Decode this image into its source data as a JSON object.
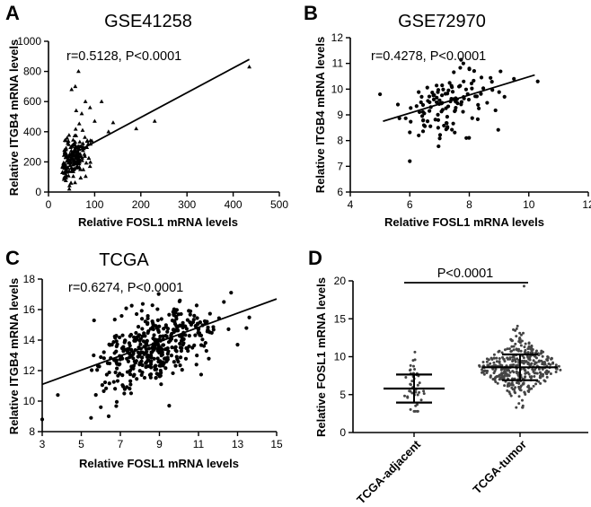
{
  "chart_data": [
    {
      "panel": "A",
      "type": "scatter",
      "title": "GSE41258",
      "stat": "r=0.5128, P<0.0001",
      "xlabel": "Relative FOSL1 mRNA levels",
      "ylabel": "Relative ITGB4 mRNA levels",
      "xlim": [
        0,
        500
      ],
      "ylim": [
        0,
        1000
      ],
      "xticks": [
        "0",
        "100",
        "200",
        "300",
        "400",
        "500"
      ],
      "yticks": [
        "0",
        "200",
        "400",
        "600",
        "800",
        "1000"
      ],
      "marker": "triangle",
      "fit_line": [
        [
          35,
          225
        ],
        [
          435,
          880
        ]
      ],
      "n_points": 180,
      "cluster": {
        "x_mean": 55,
        "x_sd": 18,
        "x_min": 30,
        "y_mean": 220,
        "y_sd": 70
      },
      "outliers": [
        [
          65,
          800
        ],
        [
          50,
          680
        ],
        [
          58,
          700
        ],
        [
          80,
          600
        ],
        [
          115,
          600
        ],
        [
          60,
          540
        ],
        [
          90,
          560
        ],
        [
          72,
          520
        ],
        [
          140,
          460
        ],
        [
          230,
          470
        ],
        [
          190,
          420
        ],
        [
          435,
          830
        ],
        [
          45,
          20
        ],
        [
          100,
          470
        ],
        [
          130,
          400
        ]
      ]
    },
    {
      "panel": "B",
      "type": "scatter",
      "title": "GSE72970",
      "stat": "r=0.4278, P<0.0001",
      "xlabel": "Relative FOSL1 mRNA levels",
      "ylabel": "Relative ITGB4 mRNA levels",
      "xlim": [
        4,
        12
      ],
      "ylim": [
        6,
        12
      ],
      "xticks": [
        "4",
        "6",
        "8",
        "10",
        "12"
      ],
      "yticks": [
        "6",
        "7",
        "8",
        "9",
        "10",
        "11",
        "12"
      ],
      "marker": "circle",
      "fit_line": [
        [
          5.1,
          8.75
        ],
        [
          10.2,
          10.55
        ]
      ],
      "n_points": 120,
      "cluster": {
        "x_mean": 7.2,
        "x_sd": 0.75,
        "x_min": 5,
        "y_mean": 9.4,
        "y_sd": 0.6
      },
      "outliers": [
        [
          6.0,
          7.2
        ],
        [
          7.9,
          8.1
        ],
        [
          5.0,
          9.8
        ],
        [
          10.3,
          10.3
        ],
        [
          9.5,
          10.4
        ],
        [
          7.8,
          11.0
        ],
        [
          8.0,
          10.8
        ],
        [
          6.3,
          8.2
        ],
        [
          5.6,
          9.4
        ]
      ]
    },
    {
      "panel": "C",
      "type": "scatter",
      "title": "TCGA",
      "stat": "r=0.6274, P<0.0001",
      "xlabel": "Relative FOSL1 mRNA levels",
      "ylabel": "Relative ITGB4 mRNA levels",
      "xlim": [
        3,
        15
      ],
      "ylim": [
        8,
        18
      ],
      "xticks": [
        "3",
        "5",
        "7",
        "9",
        "11",
        "13",
        "15"
      ],
      "yticks": [
        "8",
        "10",
        "12",
        "14",
        "16",
        "18"
      ],
      "marker": "circle",
      "fit_line": [
        [
          3,
          11.1
        ],
        [
          15,
          16.7
        ]
      ],
      "n_points": 420,
      "cluster": {
        "x_mean": 8.8,
        "x_sd": 1.5,
        "x_min": 5.3,
        "y_mean": 13.6,
        "y_sd": 1.1
      },
      "outliers": [
        [
          3,
          8.8
        ],
        [
          3.8,
          10.4
        ],
        [
          5.5,
          8.9
        ],
        [
          9.5,
          9.7
        ],
        [
          13.0,
          13.7
        ],
        [
          12.3,
          16.5
        ],
        [
          6.0,
          9.6
        ],
        [
          7.2,
          10.5
        ]
      ]
    },
    {
      "panel": "D",
      "type": "dot-strip",
      "title": "",
      "xlabel": "",
      "ylabel": "Relative FOSL1 mRNA levels",
      "ylim": [
        0,
        20
      ],
      "yticks": [
        "0",
        "5",
        "10",
        "15",
        "20"
      ],
      "categories": [
        "TCGA-adjacent",
        "TCGA-tumor"
      ],
      "groups": [
        {
          "name": "TCGA-adjacent",
          "mean": 5.8,
          "sd": 1.85,
          "n": 41,
          "min": 2.8,
          "max": 10.6
        },
        {
          "name": "TCGA-tumor",
          "mean": 8.6,
          "sd": 1.7,
          "n": 380,
          "min": 3.3,
          "max": 19.3
        }
      ],
      "significance": "P<0.0001"
    }
  ]
}
